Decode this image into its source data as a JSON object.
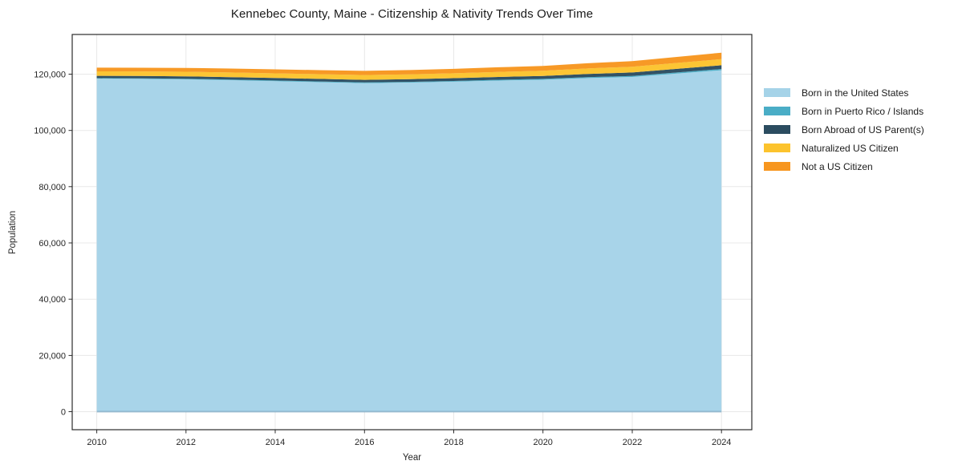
{
  "chart_data": {
    "type": "area",
    "stacked": true,
    "title": "Kennebec County, Maine - Citizenship & Nativity Trends Over Time",
    "xlabel": "Year",
    "ylabel": "Population",
    "x": [
      2010,
      2011,
      2012,
      2013,
      2014,
      2015,
      2016,
      2017,
      2018,
      2019,
      2020,
      2021,
      2022,
      2023,
      2024
    ],
    "series": [
      {
        "name": "Born in the United States",
        "color": "#A5D3E8",
        "values": [
          118400,
          118300,
          118150,
          117850,
          117500,
          117150,
          116800,
          117000,
          117300,
          117700,
          118000,
          118600,
          119000,
          120200,
          121400
        ]
      },
      {
        "name": "Born in Puerto Rico / Islands",
        "color": "#4AADC6",
        "values": [
          200,
          210,
          220,
          230,
          240,
          250,
          260,
          270,
          280,
          290,
          310,
          330,
          350,
          380,
          420
        ]
      },
      {
        "name": "Born Abroad of US Parent(s)",
        "color": "#2B4C60",
        "values": [
          800,
          820,
          840,
          860,
          880,
          900,
          920,
          950,
          980,
          1010,
          1060,
          1150,
          1250,
          1300,
          1350
        ]
      },
      {
        "name": "Naturalized US Citizen",
        "color": "#FCC32D",
        "values": [
          1600,
          1620,
          1640,
          1660,
          1670,
          1680,
          1700,
          1720,
          1750,
          1800,
          1850,
          1950,
          2050,
          2100,
          2150
        ]
      },
      {
        "name": "Not a US Citizen",
        "color": "#F7961F",
        "values": [
          1300,
          1330,
          1360,
          1390,
          1420,
          1450,
          1480,
          1520,
          1570,
          1630,
          1700,
          1850,
          2000,
          2150,
          2300
        ]
      }
    ],
    "xticks": [
      2010,
      2012,
      2014,
      2016,
      2018,
      2020,
      2022,
      2024
    ],
    "xtick_labels": [
      "2010",
      "2012",
      "2014",
      "2016",
      "2018",
      "2020",
      "2022",
      "2024"
    ],
    "yticks": [
      0,
      20000,
      40000,
      60000,
      80000,
      100000,
      120000
    ],
    "ytick_labels": [
      "0",
      "20,000",
      "40,000",
      "60,000",
      "80,000",
      "100,000",
      "120,000"
    ],
    "xlim": [
      2009.45,
      2024.68
    ],
    "ylim": [
      -6400,
      134100
    ],
    "grid": true,
    "grid_color": "#E8E8E8",
    "frame_color": "#2b2b2b",
    "legend_position": "right-outside"
  }
}
